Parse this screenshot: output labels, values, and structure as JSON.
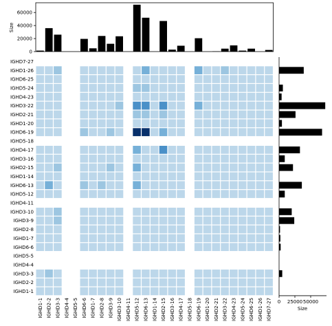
{
  "chart_data": {
    "type": "heatmap",
    "x_categories": [
      "IGHD1-1",
      "IGHD2-2",
      "IGHD3-3",
      "IGHD4-4",
      "IGHD5-5",
      "IGHD6-6",
      "IGHD1-7",
      "IGHD2-8",
      "IGHD3-9",
      "IGHD3-10",
      "IGHD4-11",
      "IGHD5-12",
      "IGHD6-13",
      "IGHD1-14",
      "IGHD2-15",
      "IGHD3-16",
      "IGHD4-17",
      "IGHD5-18",
      "IGHD6-19",
      "IGHD1-20",
      "IGHD2-21",
      "IGHD3-22",
      "IGHD4-23",
      "IGHD5-24",
      "IGHD6-25",
      "IGHD1-26",
      "IGHD7-27"
    ],
    "y_categories": [
      "IGHD7-27",
      "IGHD1-26",
      "IGHD6-25",
      "IGHD5-24",
      "IGHD4-23",
      "IGHD3-22",
      "IGHD2-21",
      "IGHD1-20",
      "IGHD6-19",
      "IGHD5-18",
      "IGHD4-17",
      "IGHD3-16",
      "IGHD2-15",
      "IGHD1-14",
      "IGHD6-13",
      "IGHD5-12",
      "IGHD4-11",
      "IGHD3-10",
      "IGHD3-9",
      "IGHD2-8",
      "IGHD1-7",
      "IGHD6-6",
      "IGHD5-5",
      "IGHD4-4",
      "IGHD3-3",
      "IGHD2-2",
      "IGHD1-1"
    ],
    "matrix": [
      [
        0,
        0,
        0,
        0,
        0,
        0,
        0,
        0,
        0,
        0,
        0,
        0,
        0,
        0,
        0,
        0,
        0,
        0,
        0,
        0,
        0,
        0,
        0,
        0,
        0,
        0,
        0
      ],
      [
        1,
        1,
        2,
        0,
        0,
        1,
        1,
        1,
        1,
        1,
        0,
        1,
        3,
        1,
        1,
        1,
        1,
        0,
        3,
        1,
        1,
        2,
        1,
        1,
        1,
        1,
        1
      ],
      [
        1,
        1,
        1,
        0,
        0,
        1,
        1,
        1,
        1,
        1,
        0,
        1,
        1,
        1,
        1,
        1,
        1,
        0,
        1,
        1,
        1,
        1,
        1,
        1,
        1,
        1,
        1
      ],
      [
        1,
        1,
        1,
        0,
        0,
        1,
        1,
        1,
        1,
        1,
        0,
        2,
        2,
        1,
        1,
        1,
        1,
        0,
        1,
        1,
        1,
        1,
        1,
        1,
        1,
        1,
        1
      ],
      [
        1,
        1,
        1,
        0,
        0,
        1,
        1,
        1,
        1,
        1,
        0,
        1,
        1,
        1,
        1,
        1,
        1,
        0,
        1,
        1,
        1,
        1,
        1,
        1,
        1,
        1,
        1
      ],
      [
        1,
        1,
        1,
        0,
        0,
        1,
        1,
        1,
        1,
        2,
        0,
        4,
        4,
        1,
        4,
        1,
        1,
        0,
        3,
        1,
        1,
        1,
        1,
        1,
        1,
        1,
        1
      ],
      [
        1,
        1,
        1,
        0,
        0,
        1,
        1,
        1,
        1,
        1,
        0,
        2,
        2,
        1,
        2,
        1,
        1,
        0,
        1,
        1,
        1,
        1,
        1,
        1,
        1,
        1,
        1
      ],
      [
        1,
        1,
        1,
        0,
        0,
        1,
        1,
        1,
        1,
        1,
        0,
        1,
        1,
        1,
        1,
        1,
        1,
        0,
        1,
        1,
        1,
        1,
        1,
        1,
        1,
        1,
        1
      ],
      [
        1,
        1,
        1,
        0,
        0,
        2,
        1,
        1,
        2,
        1,
        0,
        6,
        6,
        1,
        3,
        1,
        1,
        0,
        1,
        1,
        1,
        1,
        1,
        1,
        1,
        1,
        1
      ],
      [
        0,
        0,
        0,
        0,
        0,
        0,
        0,
        0,
        0,
        0,
        0,
        0,
        0,
        0,
        0,
        0,
        0,
        0,
        0,
        0,
        0,
        0,
        0,
        0,
        0,
        0,
        0
      ],
      [
        1,
        1,
        1,
        0,
        0,
        1,
        1,
        1,
        1,
        1,
        0,
        3,
        1,
        1,
        4,
        1,
        1,
        0,
        1,
        1,
        1,
        1,
        1,
        1,
        1,
        1,
        1
      ],
      [
        1,
        1,
        1,
        0,
        0,
        1,
        1,
        1,
        1,
        1,
        0,
        1,
        1,
        1,
        1,
        1,
        1,
        0,
        1,
        1,
        1,
        1,
        1,
        1,
        1,
        1,
        1
      ],
      [
        1,
        1,
        2,
        0,
        0,
        1,
        1,
        1,
        2,
        1,
        0,
        3,
        1,
        1,
        1,
        1,
        1,
        0,
        1,
        1,
        1,
        1,
        1,
        1,
        1,
        1,
        1
      ],
      [
        1,
        1,
        1,
        0,
        0,
        1,
        1,
        1,
        1,
        1,
        0,
        1,
        1,
        1,
        1,
        1,
        1,
        0,
        1,
        1,
        1,
        1,
        1,
        1,
        1,
        1,
        1
      ],
      [
        1,
        3,
        1,
        0,
        0,
        2,
        1,
        2,
        1,
        1,
        0,
        3,
        1,
        1,
        1,
        1,
        1,
        0,
        1,
        1,
        1,
        1,
        1,
        1,
        1,
        1,
        1
      ],
      [
        1,
        1,
        1,
        0,
        0,
        1,
        1,
        1,
        1,
        1,
        0,
        1,
        1,
        1,
        1,
        1,
        1,
        0,
        1,
        1,
        1,
        1,
        1,
        1,
        1,
        1,
        1
      ],
      [
        0,
        0,
        0,
        0,
        0,
        0,
        0,
        0,
        0,
        0,
        0,
        0,
        0,
        0,
        0,
        0,
        0,
        0,
        0,
        0,
        0,
        0,
        0,
        0,
        0,
        0,
        0
      ],
      [
        1,
        1,
        2,
        0,
        0,
        1,
        1,
        1,
        1,
        1,
        0,
        1,
        1,
        1,
        1,
        1,
        1,
        0,
        1,
        1,
        1,
        1,
        1,
        1,
        1,
        1,
        1
      ],
      [
        1,
        1,
        2,
        0,
        0,
        1,
        1,
        1,
        1,
        1,
        0,
        1,
        1,
        1,
        1,
        1,
        1,
        0,
        1,
        1,
        1,
        1,
        1,
        1,
        1,
        1,
        1
      ],
      [
        1,
        1,
        1,
        0,
        0,
        1,
        1,
        1,
        1,
        1,
        0,
        1,
        1,
        1,
        1,
        1,
        1,
        0,
        1,
        1,
        1,
        1,
        1,
        1,
        1,
        1,
        1
      ],
      [
        1,
        1,
        1,
        0,
        0,
        1,
        1,
        1,
        1,
        1,
        0,
        1,
        1,
        1,
        1,
        1,
        1,
        0,
        1,
        1,
        1,
        1,
        1,
        1,
        1,
        1,
        1
      ],
      [
        1,
        1,
        1,
        0,
        0,
        1,
        1,
        1,
        1,
        1,
        0,
        1,
        1,
        1,
        1,
        1,
        1,
        0,
        1,
        1,
        1,
        1,
        1,
        1,
        1,
        1,
        1
      ],
      [
        0,
        0,
        0,
        0,
        0,
        0,
        0,
        0,
        0,
        0,
        0,
        0,
        0,
        0,
        0,
        0,
        0,
        0,
        0,
        0,
        0,
        0,
        0,
        0,
        0,
        0,
        0
      ],
      [
        0,
        0,
        0,
        0,
        0,
        0,
        0,
        0,
        0,
        0,
        0,
        0,
        0,
        0,
        0,
        0,
        0,
        0,
        0,
        0,
        0,
        0,
        0,
        0,
        0,
        0,
        0
      ],
      [
        1,
        2,
        1,
        0,
        0,
        1,
        1,
        1,
        1,
        1,
        0,
        1,
        1,
        1,
        1,
        1,
        1,
        0,
        1,
        1,
        1,
        1,
        1,
        1,
        1,
        1,
        1
      ],
      [
        1,
        1,
        1,
        0,
        0,
        1,
        1,
        1,
        1,
        1,
        0,
        1,
        1,
        1,
        1,
        1,
        1,
        0,
        1,
        1,
        1,
        1,
        1,
        1,
        1,
        1,
        1
      ],
      [
        1,
        1,
        1,
        0,
        0,
        1,
        1,
        1,
        1,
        1,
        0,
        1,
        1,
        1,
        1,
        1,
        1,
        0,
        1,
        1,
        1,
        1,
        1,
        1,
        1,
        1,
        1
      ]
    ],
    "color_levels": [
      "#ffffff",
      "#bcd7ea",
      "#9dc6e1",
      "#76b0d8",
      "#4a90c8",
      "#2666a8",
      "#08306b"
    ],
    "top_bars": {
      "ylabel": "Size",
      "ylim": [
        0,
        75000
      ],
      "yticks": [
        0,
        20000,
        40000,
        60000
      ],
      "values": [
        1500,
        36000,
        26000,
        0,
        0,
        19500,
        5000,
        24000,
        12000,
        23500,
        0,
        72000,
        52000,
        0,
        47000,
        3000,
        9000,
        0,
        20500,
        0,
        500,
        4500,
        9500,
        1500,
        4500,
        0,
        2500
      ]
    },
    "right_bars": {
      "xlabel": "Size",
      "xlim": [
        0,
        75000
      ],
      "xticks": [
        0,
        25000,
        50000
      ],
      "values": [
        0,
        39000,
        0,
        6000,
        4000,
        73000,
        26000,
        4500,
        68000,
        0,
        33000,
        9000,
        22000,
        0,
        36000,
        9000,
        0,
        20000,
        24000,
        1500,
        2000,
        2500,
        0,
        0,
        5000,
        0,
        0
      ]
    },
    "title": "",
    "xlabel": "",
    "ylabel": ""
  }
}
